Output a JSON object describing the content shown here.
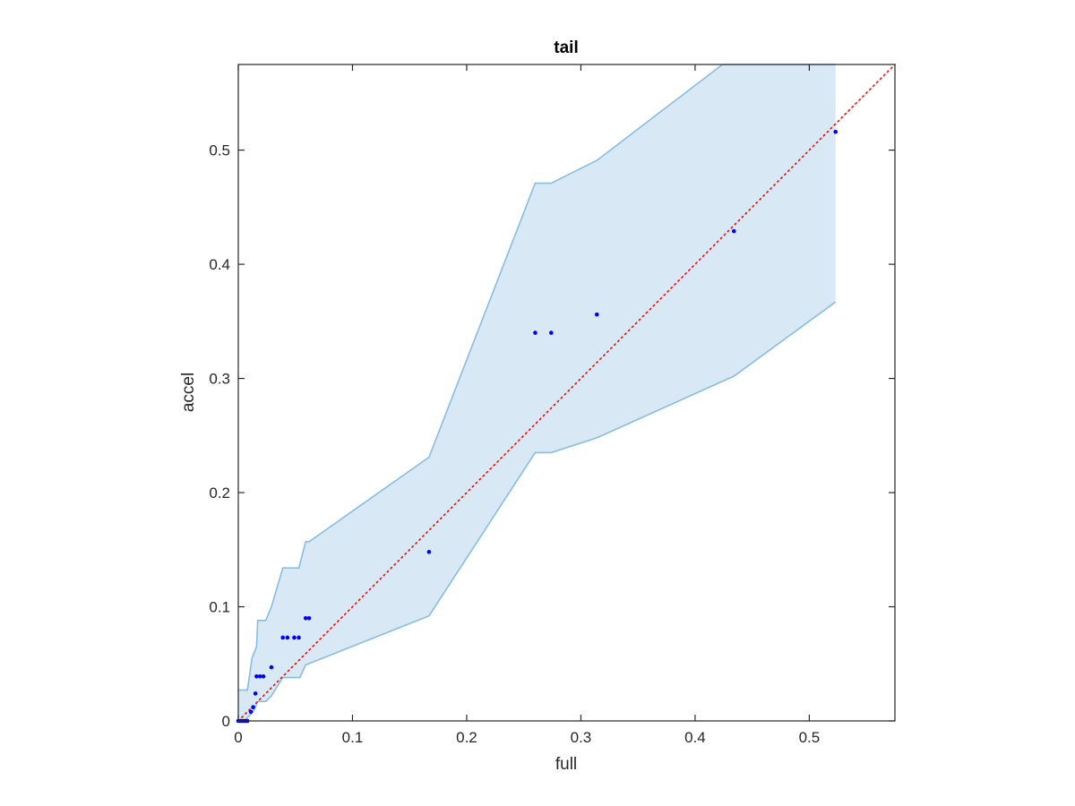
{
  "chart_data": {
    "type": "scatter",
    "title": "tail",
    "xlabel": "full",
    "ylabel": "accel",
    "xlim": [
      0,
      0.575
    ],
    "ylim": [
      0,
      0.575
    ],
    "xticks": [
      0,
      0.1,
      0.2,
      0.3,
      0.4,
      0.5
    ],
    "yticks": [
      0,
      0.1,
      0.2,
      0.3,
      0.4,
      0.5
    ],
    "xtick_labels": [
      "0",
      "0.1",
      "0.2",
      "0.3",
      "0.4",
      "0.5"
    ],
    "ytick_labels": [
      "0",
      "0.1",
      "0.2",
      "0.3",
      "0.4",
      "0.5"
    ],
    "grid": false,
    "box": true,
    "points": {
      "color": "#0000ff",
      "x": [
        0,
        0.002,
        0.004,
        0.006,
        0.008,
        0.011,
        0.013,
        0.015,
        0.016,
        0.019,
        0.022,
        0.029,
        0.039,
        0.043,
        0.049,
        0.053,
        0.059,
        0.062,
        0.167,
        0.26,
        0.274,
        0.314,
        0.434,
        0.523
      ],
      "y": [
        0,
        0,
        0,
        0,
        0,
        0.008,
        0.012,
        0.024,
        0.039,
        0.039,
        0.039,
        0.047,
        0.073,
        0.073,
        0.073,
        0.073,
        0.09,
        0.09,
        0.148,
        0.34,
        0.34,
        0.356,
        0.429,
        0.516
      ]
    },
    "identity_line": {
      "from": [
        0,
        0
      ],
      "to": [
        0.575,
        0.575
      ],
      "color": "#ff0000",
      "style": "dotted"
    },
    "confidence_band": {
      "fill": "#d9e8f5",
      "edge": "#86bde0",
      "upper": [
        [
          0,
          0.027
        ],
        [
          0.008,
          0.027
        ],
        [
          0.012,
          0.055
        ],
        [
          0.016,
          0.065
        ],
        [
          0.017,
          0.088
        ],
        [
          0.024,
          0.088
        ],
        [
          0.029,
          0.1
        ],
        [
          0.039,
          0.134
        ],
        [
          0.053,
          0.134
        ],
        [
          0.059,
          0.157
        ],
        [
          0.062,
          0.157
        ],
        [
          0.167,
          0.231
        ],
        [
          0.26,
          0.471
        ],
        [
          0.274,
          0.471
        ],
        [
          0.314,
          0.491
        ],
        [
          0.424,
          0.575
        ],
        [
          0.523,
          0.575
        ]
      ],
      "lower": [
        [
          0.523,
          0.367
        ],
        [
          0.434,
          0.302
        ],
        [
          0.314,
          0.248
        ],
        [
          0.274,
          0.235
        ],
        [
          0.26,
          0.235
        ],
        [
          0.167,
          0.092
        ],
        [
          0.059,
          0.049
        ],
        [
          0.054,
          0.038
        ],
        [
          0.039,
          0.038
        ],
        [
          0.029,
          0.022
        ],
        [
          0.024,
          0.017
        ],
        [
          0.017,
          0.017
        ],
        [
          0.013,
          0.008
        ],
        [
          0.008,
          0.003
        ],
        [
          0.006,
          0
        ],
        [
          0,
          0
        ]
      ]
    }
  }
}
